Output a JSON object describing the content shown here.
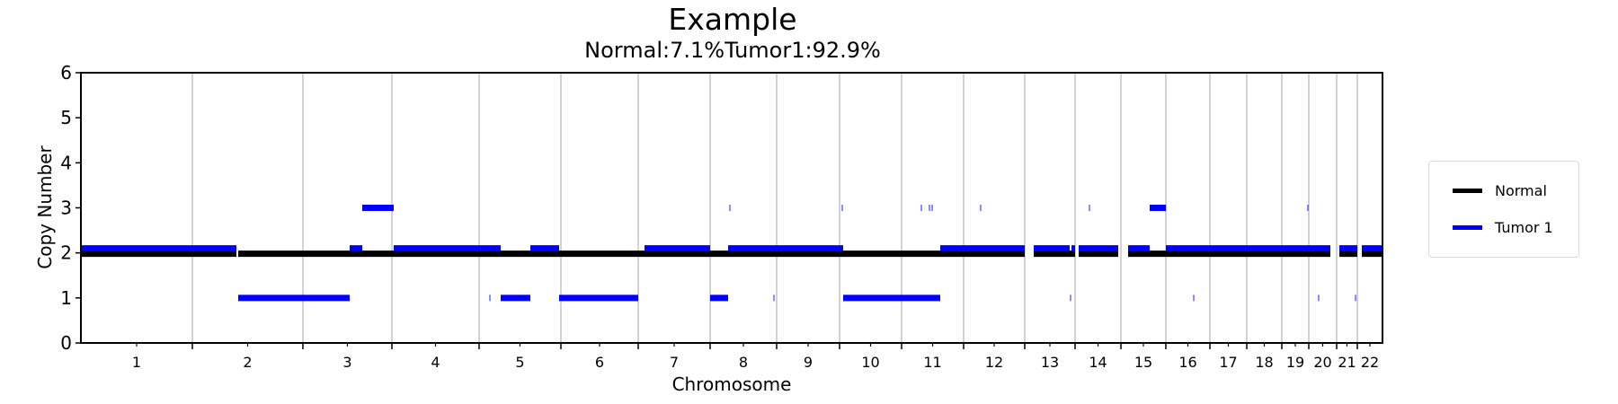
{
  "title": "Example",
  "subtitle": "Normal:7.1%Tumor1:92.9%",
  "colors": {
    "normal": "#000000",
    "tumor1": "#0000ff",
    "grid": "#c8c8c8",
    "axis": "#000000"
  },
  "legend": [
    {
      "label": "Normal",
      "color": "#000000"
    },
    {
      "label": "Tumor 1",
      "color": "#0000ff"
    }
  ],
  "chart_data": {
    "type": "line",
    "title": "Example",
    "subtitle": "Normal:7.1%Tumor1:92.9%",
    "xlabel": "Chromosome",
    "ylabel": "Copy Number",
    "ylim": [
      0,
      6
    ],
    "yticks": [
      0,
      1,
      2,
      3,
      4,
      5,
      6
    ],
    "xlim": [
      0,
      1448
    ],
    "grid": "vertical lines at chromosome boundaries",
    "legend_position": "right, outside plot",
    "chromosomes": [
      "1",
      "2",
      "3",
      "4",
      "5",
      "6",
      "7",
      "8",
      "9",
      "10",
      "11",
      "12",
      "13",
      "14",
      "15",
      "16",
      "17",
      "18",
      "19",
      "20",
      "21",
      "22"
    ],
    "chromosome_boundaries": [
      0,
      124,
      247,
      346,
      443,
      534,
      620,
      700,
      774,
      844,
      913,
      982,
      1050,
      1106,
      1157,
      1207,
      1256,
      1297,
      1336,
      1366,
      1397,
      1420,
      1448
    ],
    "series": [
      {
        "name": "Normal",
        "color": "#000000",
        "segments": [
          {
            "x0": 0,
            "x1": 173,
            "cn": 2
          },
          {
            "x0": 175,
            "x1": 1050,
            "cn": 2
          },
          {
            "x0": 1060,
            "x1": 1106,
            "cn": 2
          },
          {
            "x0": 1110,
            "x1": 1154,
            "cn": 2
          },
          {
            "x0": 1165,
            "x1": 1390,
            "cn": 2
          },
          {
            "x0": 1400,
            "x1": 1420,
            "cn": 2
          },
          {
            "x0": 1425,
            "x1": 1448,
            "cn": 2
          }
        ]
      },
      {
        "name": "Tumor 1",
        "color": "#0000ff",
        "segments": [
          {
            "x0": 0,
            "x1": 173,
            "cn": 2
          },
          {
            "x0": 175,
            "x1": 299,
            "cn": 1
          },
          {
            "x0": 299,
            "x1": 313,
            "cn": 2
          },
          {
            "x0": 313,
            "x1": 348,
            "cn": 3
          },
          {
            "x0": 348,
            "x1": 467,
            "cn": 2
          },
          {
            "x0": 467,
            "x1": 500,
            "cn": 1
          },
          {
            "x0": 500,
            "x1": 532,
            "cn": 2
          },
          {
            "x0": 532,
            "x1": 620,
            "cn": 1
          },
          {
            "x0": 627,
            "x1": 700,
            "cn": 2
          },
          {
            "x0": 700,
            "x1": 720,
            "cn": 1
          },
          {
            "x0": 720,
            "x1": 848,
            "cn": 2
          },
          {
            "x0": 848,
            "x1": 900,
            "cn": 1
          },
          {
            "x0": 900,
            "x1": 956,
            "cn": 1
          },
          {
            "x0": 956,
            "x1": 1050,
            "cn": 2
          },
          {
            "x0": 1060,
            "x1": 1100,
            "cn": 2
          },
          {
            "x0": 1102,
            "x1": 1106,
            "cn": 2
          },
          {
            "x0": 1110,
            "x1": 1154,
            "cn": 2
          },
          {
            "x0": 1165,
            "x1": 1189,
            "cn": 2
          },
          {
            "x0": 1189,
            "x1": 1207,
            "cn": 3
          },
          {
            "x0": 1207,
            "x1": 1390,
            "cn": 2
          },
          {
            "x0": 1400,
            "x1": 1420,
            "cn": 2
          },
          {
            "x0": 1425,
            "x1": 1448,
            "cn": 2
          }
        ],
        "small_marks": [
          {
            "x": 722,
            "cn": 3
          },
          {
            "x": 847,
            "cn": 3
          },
          {
            "x": 935,
            "cn": 3
          },
          {
            "x": 944,
            "cn": 3
          },
          {
            "x": 947,
            "cn": 3
          },
          {
            "x": 1001,
            "cn": 3
          },
          {
            "x": 1122,
            "cn": 3
          },
          {
            "x": 1365,
            "cn": 3
          },
          {
            "x": 455,
            "cn": 1
          },
          {
            "x": 771,
            "cn": 1
          },
          {
            "x": 1101,
            "cn": 1
          },
          {
            "x": 1238,
            "cn": 1
          },
          {
            "x": 1377,
            "cn": 1
          },
          {
            "x": 1418,
            "cn": 1
          }
        ]
      }
    ]
  }
}
